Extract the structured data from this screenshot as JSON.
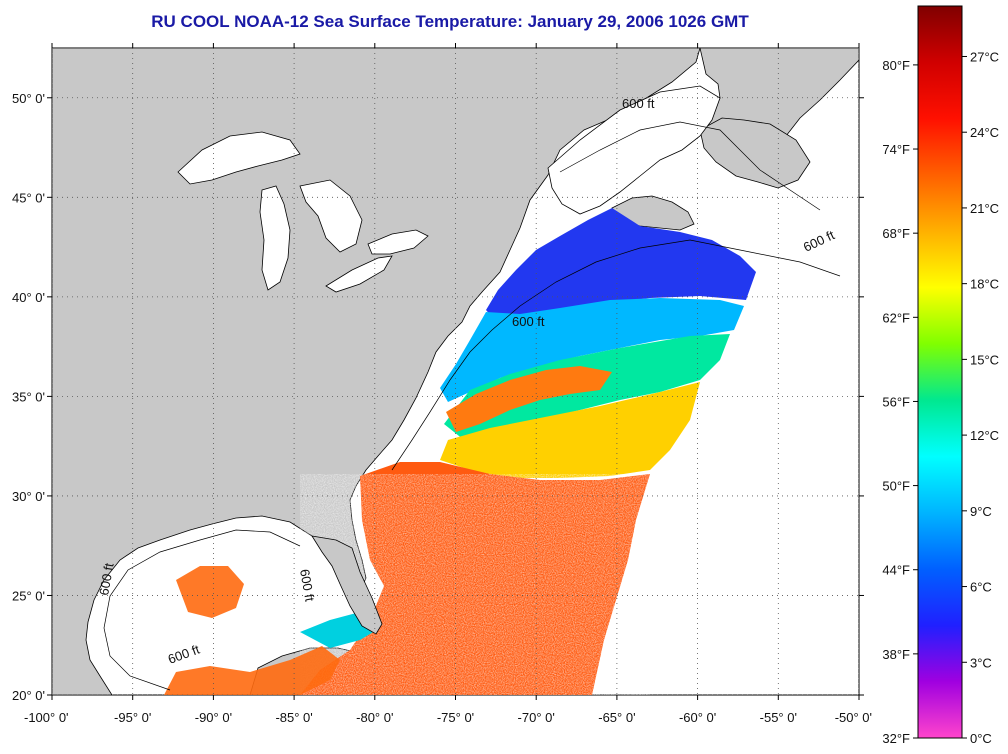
{
  "title": "RU COOL  NOAA-12  Sea Surface Temperature:  January 29, 2006 1026 GMT",
  "map": {
    "lon_range": [
      -100,
      -50
    ],
    "lat_range": [
      20,
      52.5
    ],
    "land_color": "#c8c8c8",
    "no_data_color": "#ffffff",
    "lat_labels": [
      {
        "lat": 50,
        "text": "50° 0'"
      },
      {
        "lat": 45,
        "text": "45° 0'"
      },
      {
        "lat": 40,
        "text": "40° 0'"
      },
      {
        "lat": 35,
        "text": "35° 0'"
      },
      {
        "lat": 30,
        "text": "30° 0'"
      },
      {
        "lat": 25,
        "text": "25° 0'"
      },
      {
        "lat": 20,
        "text": "20° 0'"
      }
    ],
    "lon_labels": [
      {
        "lon": -100,
        "text": "-100° 0'"
      },
      {
        "lon": -95,
        "text": "-95° 0'"
      },
      {
        "lon": -90,
        "text": "-90° 0'"
      },
      {
        "lon": -85,
        "text": "-85° 0'"
      },
      {
        "lon": -80,
        "text": "-80° 0'"
      },
      {
        "lon": -75,
        "text": "-75° 0'"
      },
      {
        "lon": -70,
        "text": "-70° 0'"
      },
      {
        "lon": -65,
        "text": "-65° 0'"
      },
      {
        "lon": -60,
        "text": "-60° 0'"
      },
      {
        "lon": -55,
        "text": "-55° 0'"
      },
      {
        "lon": -50,
        "text": "-50° 0'"
      }
    ],
    "contour_label": "600 ft"
  },
  "colorbar": {
    "range_c": [
      0,
      29
    ],
    "stops": [
      "#ff44cc",
      "#a000e0",
      "#2020ff",
      "#0060ff",
      "#00b4ff",
      "#00ffff",
      "#00e890",
      "#80ff00",
      "#ffff00",
      "#ffb000",
      "#ff6000",
      "#ff1000",
      "#d00000",
      "#800000"
    ],
    "celsius_labels": [
      {
        "value": 27,
        "text": "27°C"
      },
      {
        "value": 24,
        "text": "24°C"
      },
      {
        "value": 21,
        "text": "21°C"
      },
      {
        "value": 18,
        "text": "18°C"
      },
      {
        "value": 15,
        "text": "15°C"
      },
      {
        "value": 12,
        "text": "12°C"
      },
      {
        "value": 9,
        "text": "9°C"
      },
      {
        "value": 6,
        "text": "6°C"
      },
      {
        "value": 3,
        "text": "3°C"
      },
      {
        "value": 0,
        "text": "0°C"
      }
    ],
    "fahrenheit_labels": [
      {
        "value": 80,
        "text": "80°F"
      },
      {
        "value": 74,
        "text": "74°F"
      },
      {
        "value": 68,
        "text": "68°F"
      },
      {
        "value": 62,
        "text": "62°F"
      },
      {
        "value": 56,
        "text": "56°F"
      },
      {
        "value": 50,
        "text": "50°F"
      },
      {
        "value": 44,
        "text": "44°F"
      },
      {
        "value": 38,
        "text": "38°F"
      },
      {
        "value": 32,
        "text": "32°F"
      }
    ]
  }
}
